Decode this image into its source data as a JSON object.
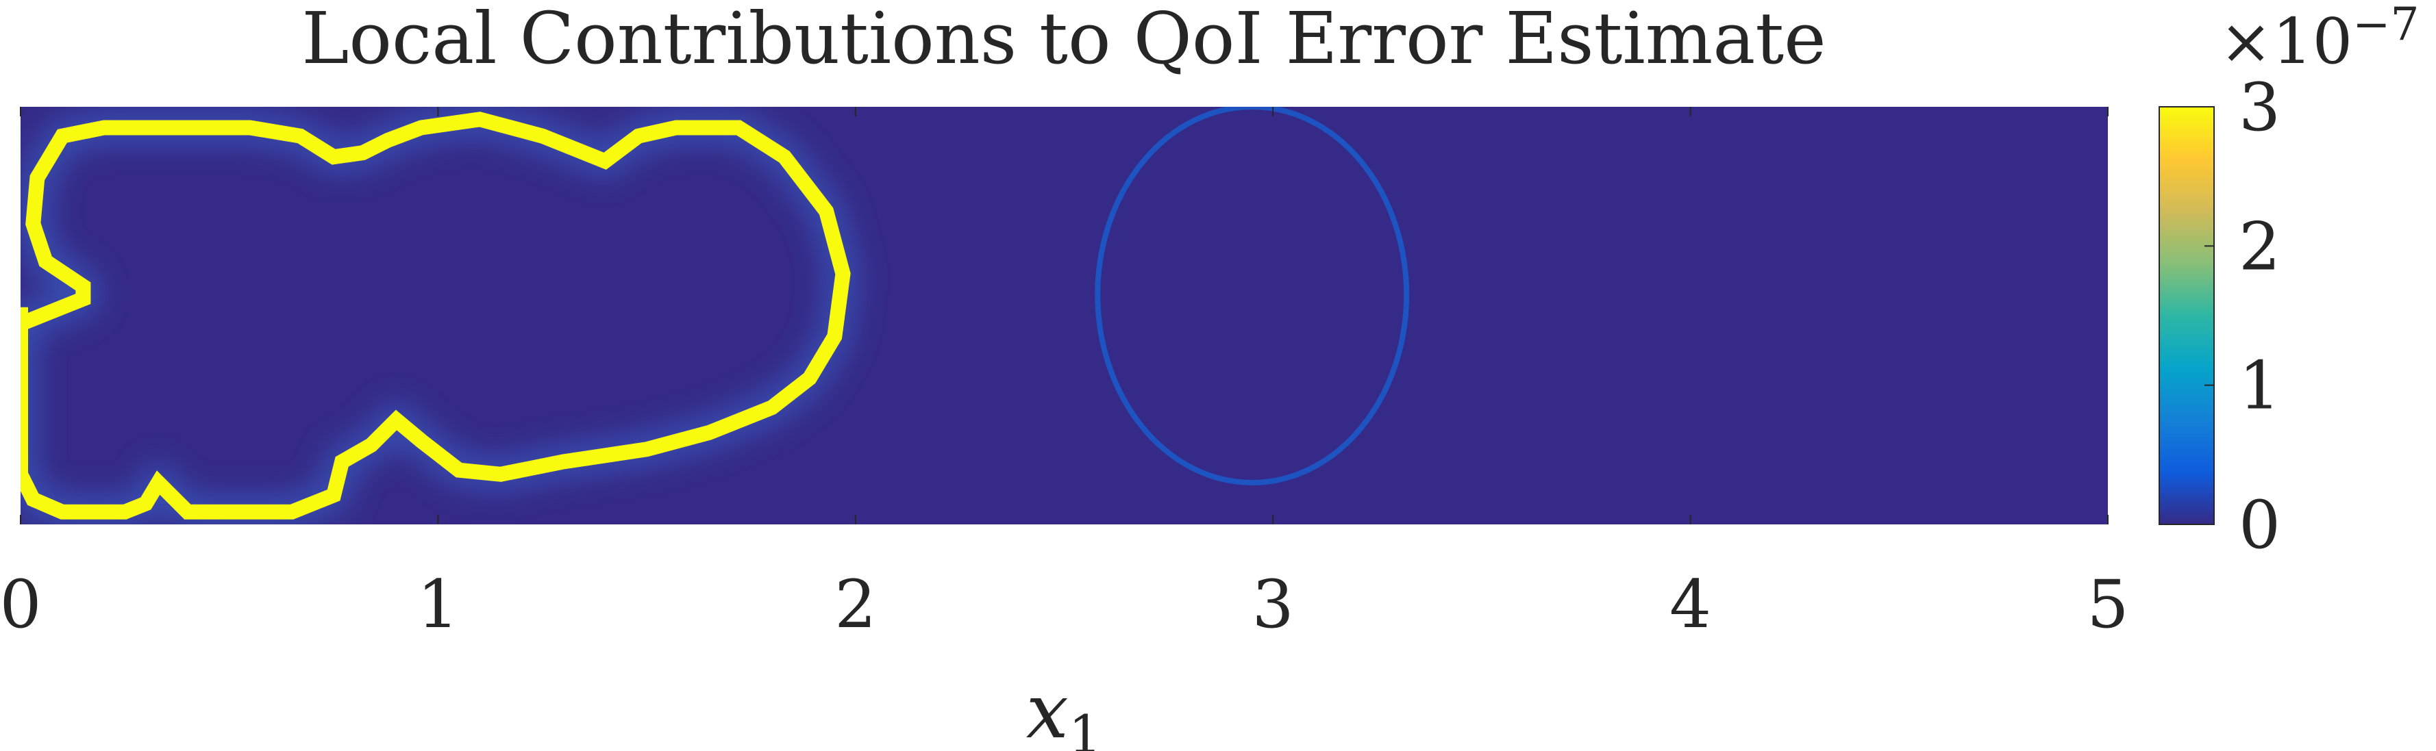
{
  "chart_data": {
    "type": "heatmap",
    "title": "Local Contributions to QoI Error Estimate",
    "xlabel": "x",
    "xlabel_subscript": "1",
    "ylabel": "",
    "xlim": [
      0,
      5
    ],
    "x_ticks": [
      "0",
      "1",
      "2",
      "3",
      "4",
      "5"
    ],
    "colorbar": {
      "range": [
        0,
        3
      ],
      "ticks": [
        "0",
        "1",
        "2",
        "3"
      ],
      "multiplier_prefix": "×10",
      "multiplier_exponent": "−7",
      "colormap": [
        "#352a87",
        "#0f5cdd",
        "#1481d6",
        "#06a4ca",
        "#2eb7a4",
        "#87bf77",
        "#d1bb59",
        "#fec832",
        "#f9fb0e"
      ]
    },
    "background_value": 0,
    "features": [
      {
        "name": "saturated contour (left blob)",
        "value": 3,
        "color": "#f9fb0e",
        "path": [
          [
            0.0,
            0.52
          ],
          [
            0.0,
            0.48
          ],
          [
            0.15,
            0.54
          ],
          [
            0.15,
            0.57
          ],
          [
            0.06,
            0.63
          ],
          [
            0.03,
            0.72
          ],
          [
            0.04,
            0.83
          ],
          [
            0.1,
            0.93
          ],
          [
            0.2,
            0.95
          ],
          [
            0.55,
            0.95
          ],
          [
            0.67,
            0.93
          ],
          [
            0.75,
            0.88
          ],
          [
            0.82,
            0.89
          ],
          [
            0.88,
            0.92
          ],
          [
            0.96,
            0.95
          ],
          [
            1.1,
            0.97
          ],
          [
            1.25,
            0.93
          ],
          [
            1.4,
            0.87
          ],
          [
            1.48,
            0.93
          ],
          [
            1.57,
            0.95
          ],
          [
            1.72,
            0.95
          ],
          [
            1.83,
            0.88
          ],
          [
            1.93,
            0.75
          ],
          [
            1.97,
            0.6
          ],
          [
            1.95,
            0.45
          ],
          [
            1.89,
            0.35
          ],
          [
            1.8,
            0.28
          ],
          [
            1.65,
            0.22
          ],
          [
            1.5,
            0.18
          ],
          [
            1.3,
            0.15
          ],
          [
            1.15,
            0.12
          ],
          [
            1.05,
            0.13
          ],
          [
            0.96,
            0.2
          ],
          [
            0.9,
            0.25
          ],
          [
            0.84,
            0.19
          ],
          [
            0.77,
            0.15
          ],
          [
            0.75,
            0.07
          ],
          [
            0.65,
            0.03
          ],
          [
            0.4,
            0.03
          ],
          [
            0.33,
            0.1
          ],
          [
            0.3,
            0.05
          ],
          [
            0.25,
            0.03
          ],
          [
            0.1,
            0.03
          ],
          [
            0.03,
            0.06
          ],
          [
            0.0,
            0.12
          ]
        ]
      },
      {
        "name": "faint ring",
        "value": 0.4,
        "color": "#1b59c8",
        "center": [
          2.95,
          0.55
        ],
        "radius": [
          0.37,
          0.45
        ]
      }
    ]
  }
}
